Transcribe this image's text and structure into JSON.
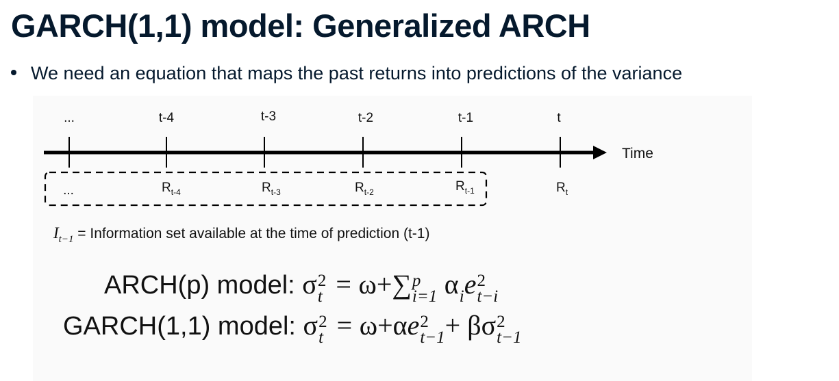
{
  "slide": {
    "title": "GARCH(1,1) model: Generalized ARCH",
    "bullet": "We need an equation that maps the past returns into predictions of the variance"
  },
  "timeline": {
    "axis_label": "Time",
    "ticks": [
      "...",
      "t-4",
      "t-3",
      "t-2",
      "t-1",
      "t"
    ],
    "returns": [
      {
        "base": "...",
        "sub": ""
      },
      {
        "base": "R",
        "sub": "t-4"
      },
      {
        "base": "R",
        "sub": "t-3"
      },
      {
        "base": "R",
        "sub": "t-2"
      },
      {
        "base": "R",
        "sub": "t-1"
      },
      {
        "base": "R",
        "sub": "t"
      }
    ]
  },
  "info_set": {
    "symbol": "I",
    "symbol_sub": "t−1",
    "text": " = Information set available at the time of prediction (t-1)"
  },
  "equations": {
    "arch": {
      "label": "ARCH(p) model: ",
      "sigma": "σ",
      "sigma_sup": "2",
      "sigma_sub": "t",
      "equals": "=",
      "omega_plus": "ω+",
      "sum": "∑",
      "sum_sup": "p",
      "sum_sub": "i=1",
      "alpha": "α",
      "alpha_sub": "i",
      "e": "e",
      "e_sup": "2",
      "e_sub": "t−i"
    },
    "garch": {
      "label": "GARCH(1,1) model: ",
      "sigma": "σ",
      "sigma_sup": "2",
      "sigma_sub": "t",
      "equals": "=",
      "omega_plus_alpha": "ω+α",
      "e": "e",
      "e_sup": "2",
      "e_sub": "t−1",
      "plus_beta": "+ β",
      "sigma2": "σ",
      "sigma2_sup": "2",
      "sigma2_sub": "t−1"
    }
  }
}
